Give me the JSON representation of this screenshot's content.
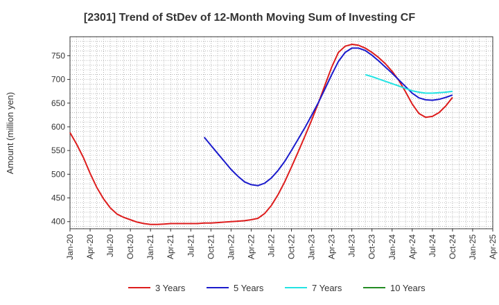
{
  "chart_data": {
    "type": "line",
    "title": "[2301]  Trend of StDev of 12-Month Moving Sum of Investing CF",
    "xlabel": "",
    "ylabel": "Amount (million yen)",
    "ylim": [
      385,
      790
    ],
    "yticks": [
      400,
      450,
      500,
      550,
      600,
      650,
      700,
      750
    ],
    "x_tick_labels": [
      "Jan-20",
      "Apr-20",
      "Jul-20",
      "Oct-20",
      "Jan-21",
      "Apr-21",
      "Jul-21",
      "Oct-21",
      "Jan-22",
      "Apr-22",
      "Jul-22",
      "Oct-22",
      "Jan-23",
      "Apr-23",
      "Jul-23",
      "Oct-23",
      "Jan-24",
      "Apr-24",
      "Jul-24",
      "Oct-24",
      "Jan-25",
      "Apr-25"
    ],
    "grid": true,
    "legend_position": "bottom",
    "series": [
      {
        "name": "3 Years",
        "color": "#dd1c1c",
        "x": [
          "2020-01",
          "2020-02",
          "2020-03",
          "2020-04",
          "2020-05",
          "2020-06",
          "2020-07",
          "2020-08",
          "2020-09",
          "2020-10",
          "2020-11",
          "2020-12",
          "2021-01",
          "2021-02",
          "2021-03",
          "2021-04",
          "2021-05",
          "2021-06",
          "2021-07",
          "2021-08",
          "2021-09",
          "2021-10",
          "2021-11",
          "2021-12",
          "2022-01",
          "2022-02",
          "2022-03",
          "2022-04",
          "2022-05",
          "2022-06",
          "2022-07",
          "2022-08",
          "2022-09",
          "2022-10",
          "2022-11",
          "2022-12",
          "2023-01",
          "2023-02",
          "2023-03",
          "2023-04",
          "2023-05",
          "2023-06",
          "2023-07",
          "2023-08",
          "2023-09",
          "2023-10",
          "2023-11",
          "2023-12",
          "2024-01",
          "2024-02",
          "2024-03",
          "2024-04",
          "2024-05",
          "2024-06",
          "2024-07",
          "2024-08",
          "2024-09",
          "2024-10"
        ],
        "values": [
          588,
          563,
          535,
          502,
          472,
          448,
          429,
          416,
          409,
          404,
          399,
          396,
          394,
          394,
          395,
          396,
          396,
          396,
          396,
          396,
          397,
          397,
          398,
          399,
          400,
          401,
          402,
          404,
          407,
          417,
          434,
          457,
          484,
          515,
          547,
          580,
          614,
          650,
          688,
          726,
          757,
          770,
          774,
          772,
          766,
          757,
          746,
          733,
          717,
          698,
          674,
          648,
          628,
          620,
          622,
          630,
          644,
          662
        ]
      },
      {
        "name": "5 Years",
        "color": "#1a1acc",
        "x": [
          "2021-09",
          "2021-10",
          "2021-11",
          "2021-12",
          "2022-01",
          "2022-02",
          "2022-03",
          "2022-04",
          "2022-05",
          "2022-06",
          "2022-07",
          "2022-08",
          "2022-09",
          "2022-10",
          "2022-11",
          "2022-12",
          "2023-01",
          "2023-02",
          "2023-03",
          "2023-04",
          "2023-05",
          "2023-06",
          "2023-07",
          "2023-08",
          "2023-09",
          "2023-10",
          "2023-11",
          "2023-12",
          "2024-01",
          "2024-02",
          "2024-03",
          "2024-04",
          "2024-05",
          "2024-06",
          "2024-07",
          "2024-08",
          "2024-09",
          "2024-10"
        ],
        "values": [
          578,
          561,
          544,
          527,
          510,
          496,
          484,
          478,
          476,
          481,
          492,
          508,
          527,
          550,
          574,
          598,
          624,
          651,
          680,
          710,
          738,
          757,
          766,
          766,
          761,
          751,
          739,
          726,
          713,
          699,
          685,
          671,
          661,
          657,
          656,
          658,
          662,
          667
        ]
      },
      {
        "name": "7 Years",
        "color": "#22e3e3",
        "x": [
          "2023-09",
          "2023-10",
          "2023-11",
          "2023-12",
          "2024-01",
          "2024-02",
          "2024-03",
          "2024-04",
          "2024-05",
          "2024-06",
          "2024-07",
          "2024-08",
          "2024-09",
          "2024-10"
        ],
        "values": [
          710,
          706,
          701,
          696,
          691,
          686,
          681,
          676,
          673,
          671,
          671,
          672,
          673,
          675
        ]
      },
      {
        "name": "10 Years",
        "color": "#228b22",
        "x": [],
        "values": []
      }
    ]
  }
}
